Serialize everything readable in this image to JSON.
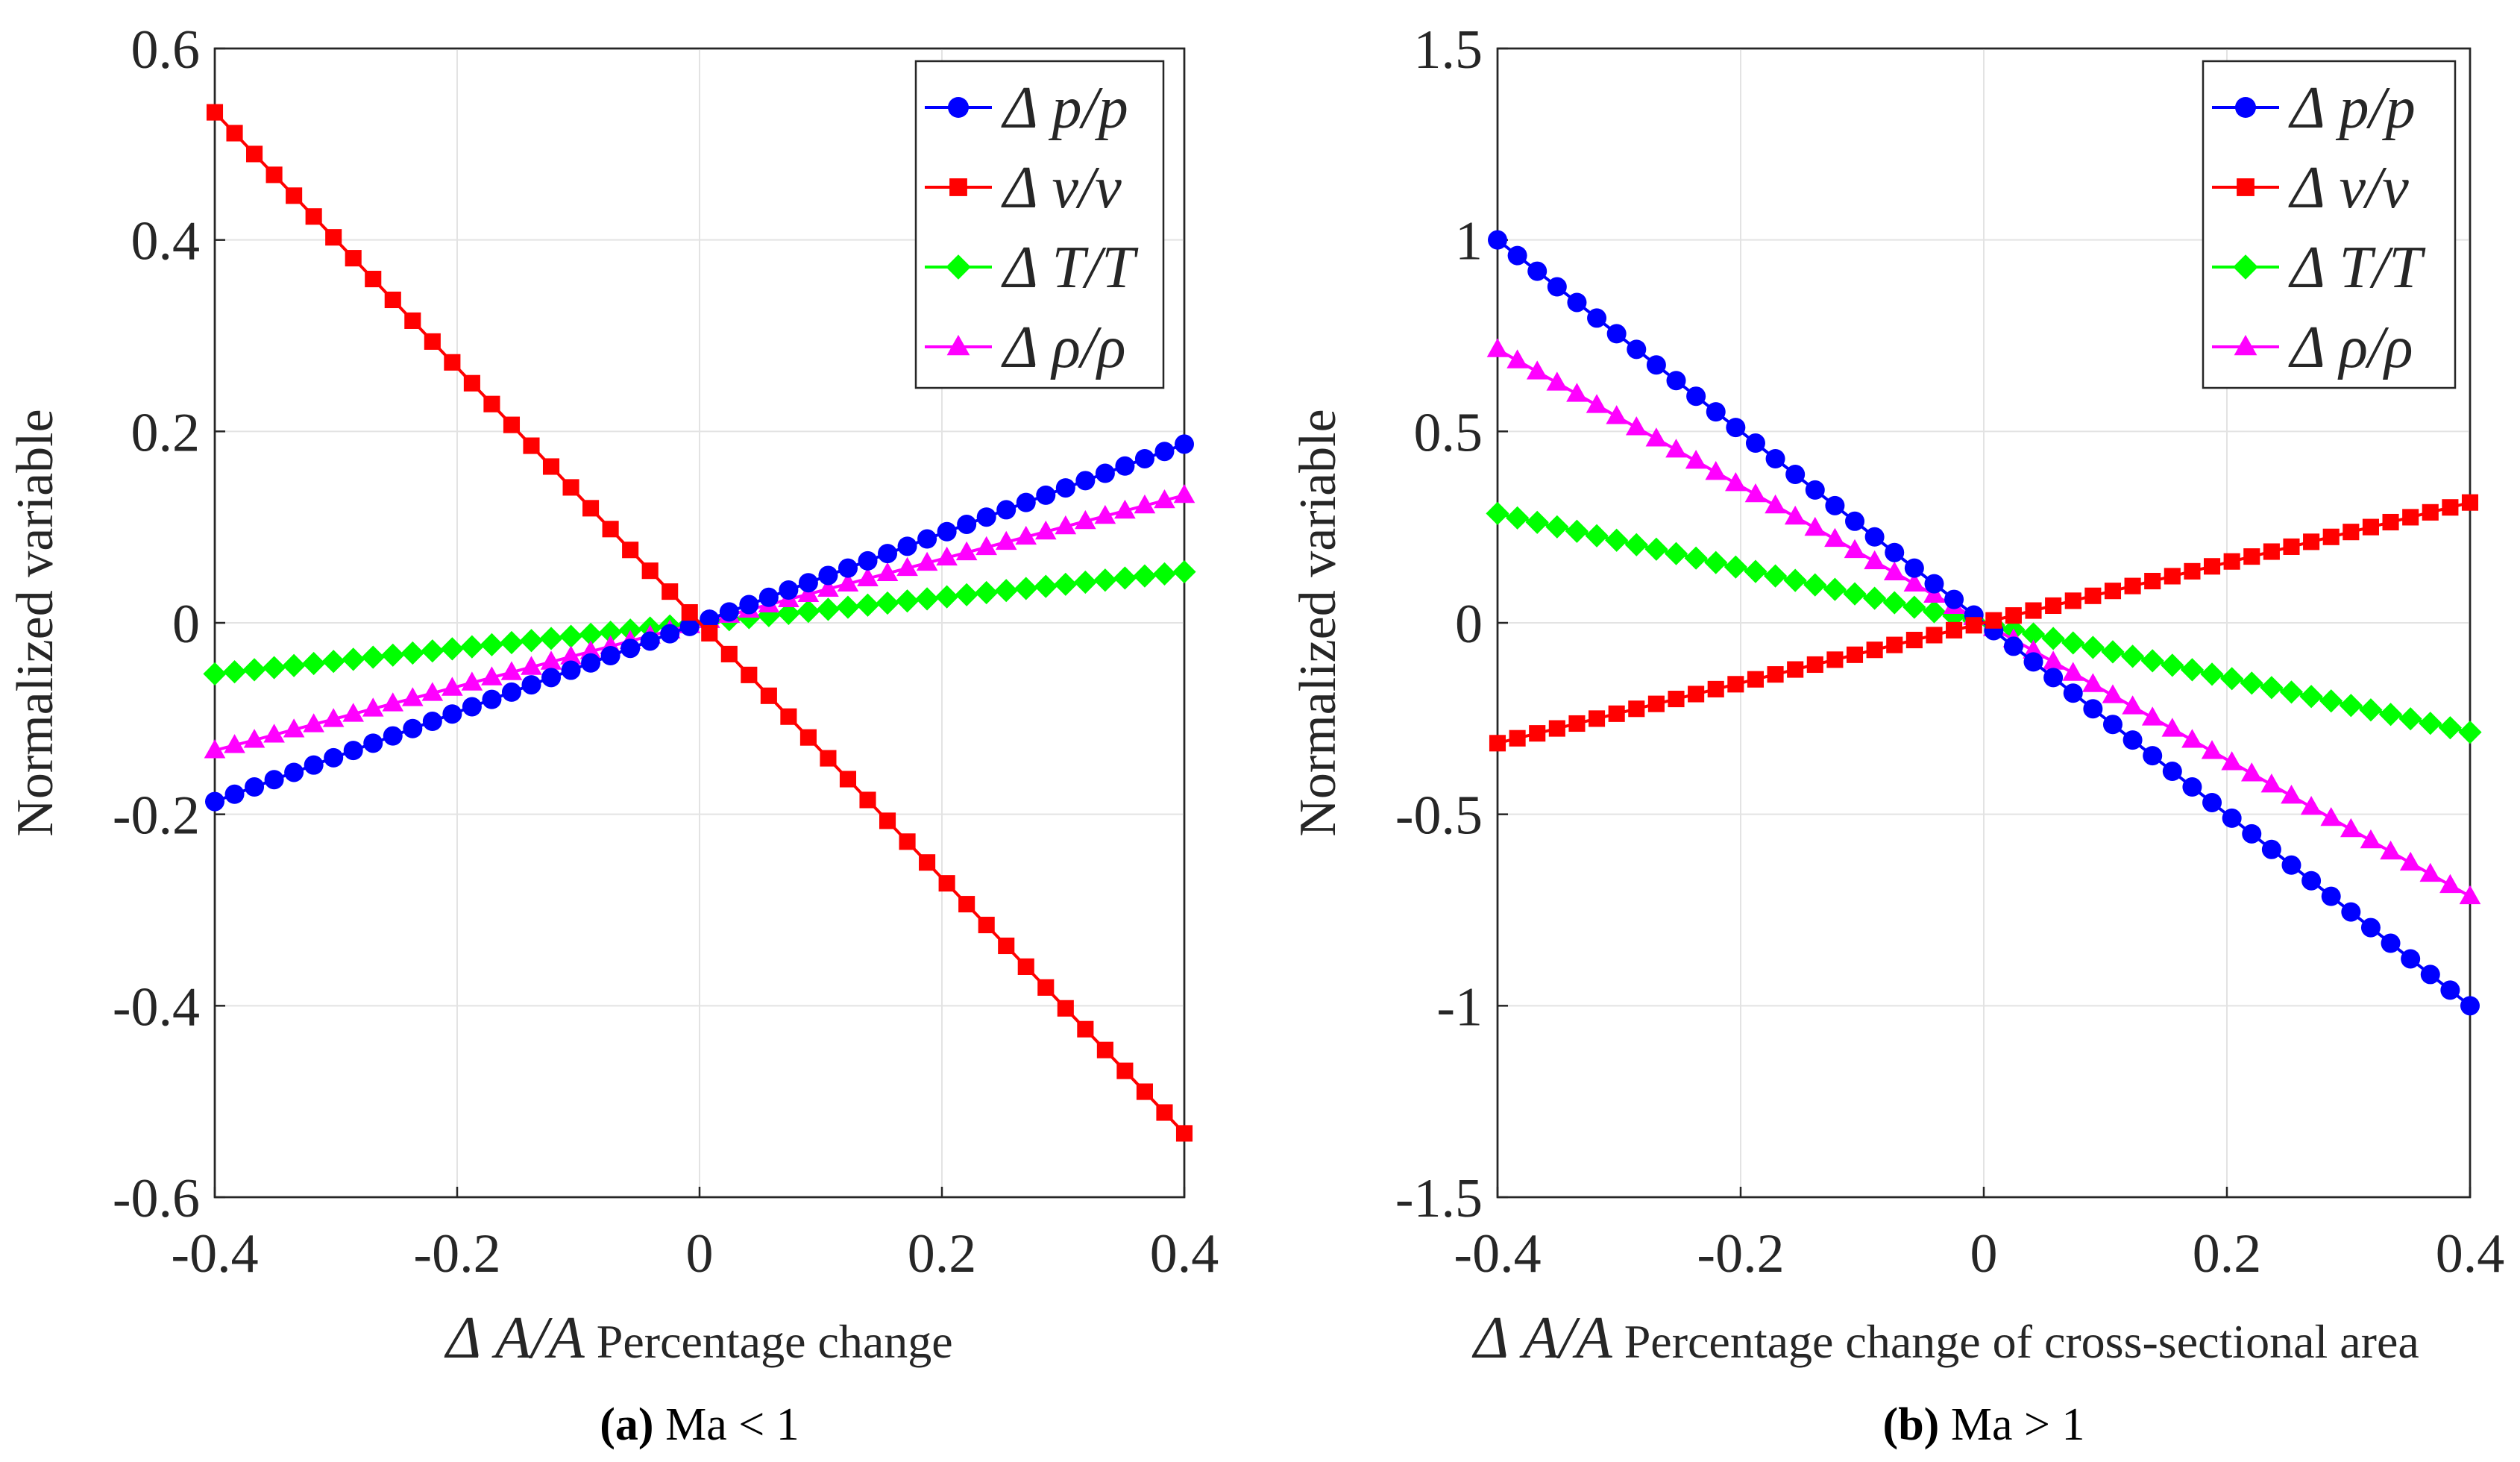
{
  "chart_data": [
    {
      "type": "line",
      "caption_letter": "(a)",
      "caption_text": " Ma < 1",
      "xlabel_symbol": "Δ A/A",
      "xlabel": "Percentage change",
      "ylabel": "Normalized variable",
      "xlim": [
        -0.4,
        0.4
      ],
      "ylim": [
        -0.6,
        0.6
      ],
      "xticks": [
        "-0.4",
        "-0.2",
        "0",
        "0.2",
        "0.4"
      ],
      "xtick_values": [
        -0.4,
        -0.2,
        0,
        0.2,
        0.4
      ],
      "yticks": [
        "-0.6",
        "-0.4",
        "-0.2",
        "0",
        "0.2",
        "0.4",
        "0.6"
      ],
      "ytick_values": [
        -0.6,
        -0.4,
        -0.2,
        0,
        0.2,
        0.4,
        0.6
      ],
      "grid": true,
      "legend_position": "top-right",
      "x_linspace": [
        -0.4,
        0.4,
        50
      ],
      "series": [
        {
          "name": "Δ p/p",
          "color": "#0000ff",
          "marker": "circle",
          "slope": 0.4667
        },
        {
          "name": "Δ v/v",
          "color": "#ff0000",
          "marker": "square",
          "slope": -1.3333
        },
        {
          "name": "Δ T/T",
          "color": "#00ff00",
          "marker": "diamond",
          "slope": 0.1333
        },
        {
          "name": "Δ ρ/ρ",
          "color": "#ff00ff",
          "marker": "triangle",
          "slope": 0.3333
        }
      ]
    },
    {
      "type": "line",
      "caption_letter": "(b)",
      "caption_text": " Ma > 1",
      "xlabel_symbol": "Δ A/A",
      "xlabel": "Percentage change of cross-sectional area",
      "ylabel": "Normalized variable",
      "xlim": [
        -0.4,
        0.4
      ],
      "ylim": [
        -1.5,
        1.5
      ],
      "xticks": [
        "-0.4",
        "-0.2",
        "0",
        "0.2",
        "0.4"
      ],
      "xtick_values": [
        -0.4,
        -0.2,
        0,
        0.2,
        0.4
      ],
      "yticks": [
        "-1.5",
        "-1",
        "-0.5",
        "0",
        "0.5",
        "1",
        "1.5"
      ],
      "ytick_values": [
        -1.5,
        -1,
        -0.5,
        0,
        0.5,
        1,
        1.5
      ],
      "grid": true,
      "legend_position": "top-right",
      "x_linspace": [
        -0.4,
        0.4,
        50
      ],
      "series": [
        {
          "name": "Δ p/p",
          "color": "#0000ff",
          "marker": "circle",
          "slope": -2.5
        },
        {
          "name": "Δ v/v",
          "color": "#ff0000",
          "marker": "square",
          "slope": 0.7857
        },
        {
          "name": "Δ T/T",
          "color": "#00ff00",
          "marker": "diamond",
          "slope": -0.7143
        },
        {
          "name": "Δ ρ/ρ",
          "color": "#ff00ff",
          "marker": "triangle",
          "slope": -1.7857
        }
      ]
    }
  ]
}
